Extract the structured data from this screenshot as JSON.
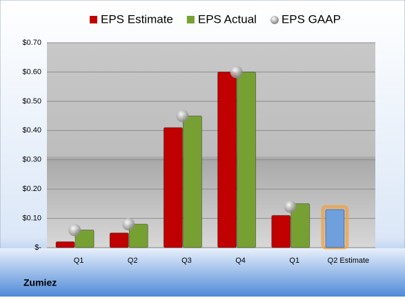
{
  "chart_data": {
    "type": "bar",
    "caption": "Zumiez",
    "categories": [
      "Q1",
      "Q2",
      "Q3",
      "Q4",
      "Q1",
      "Q2 Estimate"
    ],
    "series": [
      {
        "name": "EPS Estimate",
        "color": "#c00000",
        "colors": [
          "#c00000",
          "#c00000",
          "#c00000",
          "#c00000",
          "#c00000",
          "#6f9fdc"
        ],
        "values": [
          0.02,
          0.05,
          0.41,
          0.6,
          0.11,
          0.13
        ]
      },
      {
        "name": "EPS Actual",
        "color": "#77a033",
        "values": [
          0.06,
          0.08,
          0.45,
          0.6,
          0.15,
          null
        ]
      },
      {
        "name": "EPS GAAP",
        "type": "scatter",
        "color": "#b0b0b0",
        "values": [
          0.06,
          0.08,
          0.45,
          0.6,
          0.14,
          null
        ]
      }
    ],
    "ylim": [
      0,
      0.7
    ],
    "yticks": [
      {
        "value": 0,
        "label": "$-"
      },
      {
        "value": 0.1,
        "label": "$0.10"
      },
      {
        "value": 0.2,
        "label": "$0.20"
      },
      {
        "value": 0.3,
        "label": "$0.30"
      },
      {
        "value": 0.4,
        "label": "$0.40"
      },
      {
        "value": 0.5,
        "label": "$0.50"
      },
      {
        "value": 0.6,
        "label": "$0.60"
      },
      {
        "value": 0.7,
        "label": "$0.70"
      }
    ],
    "grid": true
  }
}
